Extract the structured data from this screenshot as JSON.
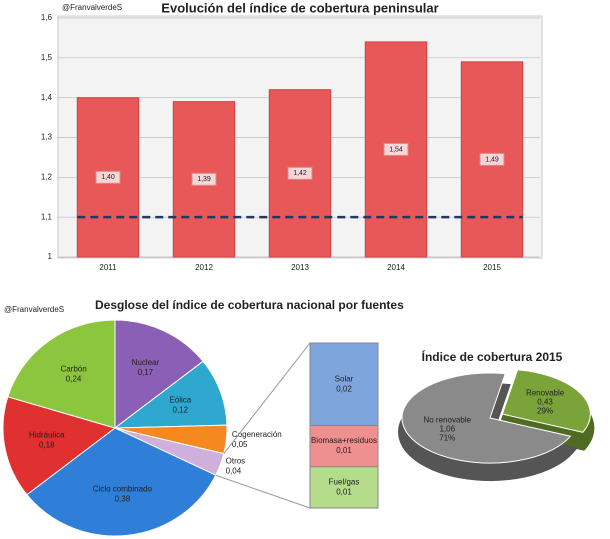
{
  "chart_data": [
    {
      "type": "bar",
      "title": "Evolución del índice de cobertura peninsular",
      "credit": "@FranvalverdeS",
      "categories": [
        "2011",
        "2012",
        "2013",
        "2014",
        "2015"
      ],
      "values": [
        1.4,
        1.39,
        1.42,
        1.54,
        1.49
      ],
      "value_labels": [
        "1,40",
        "1,39",
        "1,42",
        "1,54",
        "1,49"
      ],
      "color": "#e85858",
      "reference_line": 1.1,
      "reference_color": "#1f3864",
      "ylim": [
        1,
        1.6
      ],
      "yticks": [
        1,
        {
          "value": 1.1,
          "label": "1,1"
        },
        {
          "value": 1.2,
          "label": "1,2"
        },
        {
          "value": 1.3,
          "label": "1,3"
        },
        {
          "value": 1.4,
          "label": "1,4"
        },
        {
          "value": 1.5,
          "label": "1,5"
        },
        {
          "value": 1.6,
          "label": "1,6"
        }
      ],
      "grid": true
    },
    {
      "type": "pie",
      "title": "Desglose del índice de cobertura nacional por fuentes",
      "credit": "@FranvalverdeS",
      "categories": [
        "Nuclear",
        "Eólica",
        "Cogeneración",
        "Otros",
        "Ciclo combinado",
        "Hidráulica",
        "Carbón"
      ],
      "values": [
        0.17,
        0.12,
        0.05,
        0.04,
        0.38,
        0.18,
        0.24
      ],
      "value_labels": [
        "0,17",
        "0,12",
        "0,05",
        "0,04",
        "0,38",
        "0,18",
        "0,24"
      ],
      "colors": [
        "#8b5fb5",
        "#2ea8cf",
        "#f5891f",
        "#cfb0dd",
        "#2f7ed8",
        "#e03030",
        "#8cc63f"
      ],
      "breakdown": {
        "categories": [
          "Solar",
          "Biomasa+residuos",
          "Fuel/gas"
        ],
        "values": [
          0.02,
          0.01,
          0.01
        ],
        "value_labels": [
          "0,02",
          "0,01",
          "0,01"
        ],
        "colors": [
          "#7fa6dc",
          "#ef8f8f",
          "#b5dc8a"
        ]
      }
    },
    {
      "type": "pie3d",
      "title": "Índice de cobertura 2015",
      "categories": [
        "Renovable",
        "No renovable"
      ],
      "values": [
        0.43,
        1.06
      ],
      "value_labels": [
        "0,43",
        "1,06"
      ],
      "percent_labels": [
        "29%",
        "71%"
      ],
      "colors": [
        "#7aa33a",
        "#8a8a8a"
      ]
    }
  ]
}
